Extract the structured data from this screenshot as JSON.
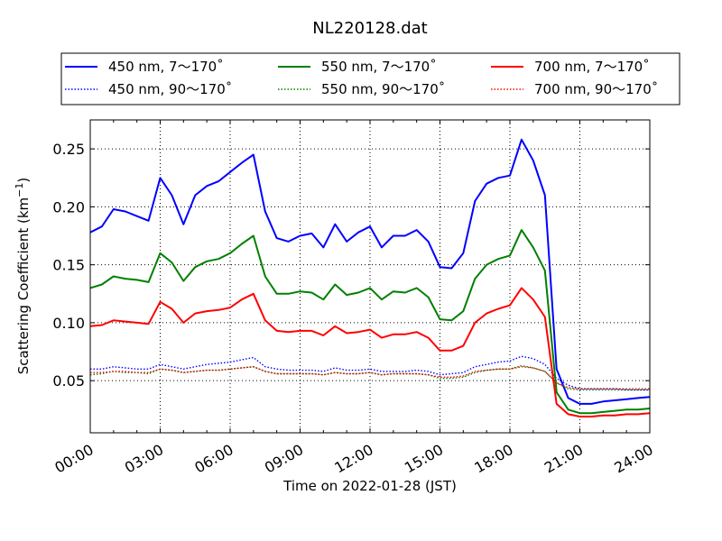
{
  "chart_data": {
    "type": "line",
    "title": "NL220128.dat",
    "xlabel": "Time on 2022-01-28 (JST)",
    "ylabel": "Scattering Coefficient (km",
    "ylabel_sup": "−1",
    "ylabel_end": ")",
    "xlim": [
      0,
      24
    ],
    "ylim": [
      0.005,
      0.275
    ],
    "x_ticks": [
      0,
      3,
      6,
      9,
      12,
      15,
      18,
      21,
      24
    ],
    "x_tick_labels": [
      "00:00",
      "03:00",
      "06:00",
      "09:00",
      "12:00",
      "15:00",
      "18:00",
      "21:00",
      "24:00"
    ],
    "y_ticks": [
      0.05,
      0.1,
      0.15,
      0.2,
      0.25
    ],
    "y_tick_labels": [
      "0.05",
      "0.10",
      "0.15",
      "0.20",
      "0.25"
    ],
    "grid": true,
    "legend": "top-outside",
    "x": [
      0,
      0.5,
      1,
      1.5,
      2,
      2.5,
      3,
      3.5,
      4,
      4.5,
      5,
      5.5,
      6,
      6.5,
      7,
      7.5,
      8,
      8.5,
      9,
      9.5,
      10,
      10.5,
      11,
      11.5,
      12,
      12.5,
      13,
      13.5,
      14,
      14.5,
      15,
      15.5,
      16,
      16.5,
      17,
      17.5,
      18,
      18.5,
      19,
      19.5,
      20,
      20.5,
      21,
      21.5,
      22,
      22.5,
      23,
      23.5,
      24
    ],
    "series": [
      {
        "name": "450 nm, 7～170˚",
        "color": "#0000ff",
        "style": "solid",
        "values": [
          0.178,
          0.183,
          0.198,
          0.196,
          0.192,
          0.188,
          0.225,
          0.21,
          0.185,
          0.21,
          0.218,
          0.222,
          0.23,
          0.238,
          0.245,
          0.196,
          0.173,
          0.17,
          0.175,
          0.177,
          0.165,
          0.185,
          0.17,
          0.178,
          0.183,
          0.165,
          0.175,
          0.175,
          0.18,
          0.17,
          0.148,
          0.147,
          0.16,
          0.205,
          0.22,
          0.225,
          0.227,
          0.258,
          0.24,
          0.21,
          0.06,
          0.035,
          0.03,
          0.03,
          0.032,
          0.033,
          0.034,
          0.035,
          0.036
        ]
      },
      {
        "name": "450 nm, 90～170˚",
        "color": "#0000ff",
        "style": "dotted",
        "values": [
          0.06,
          0.06,
          0.062,
          0.061,
          0.06,
          0.06,
          0.064,
          0.062,
          0.06,
          0.062,
          0.064,
          0.065,
          0.066,
          0.068,
          0.07,
          0.062,
          0.06,
          0.059,
          0.059,
          0.059,
          0.058,
          0.061,
          0.059,
          0.059,
          0.06,
          0.058,
          0.058,
          0.058,
          0.059,
          0.058,
          0.055,
          0.056,
          0.057,
          0.062,
          0.064,
          0.066,
          0.067,
          0.071,
          0.069,
          0.064,
          0.052,
          0.046,
          0.043,
          0.043,
          0.043,
          0.043,
          0.042,
          0.042,
          0.042
        ]
      },
      {
        "name": "550 nm, 7～170˚",
        "color": "#008000",
        "style": "solid",
        "values": [
          0.13,
          0.133,
          0.14,
          0.138,
          0.137,
          0.135,
          0.16,
          0.152,
          0.136,
          0.148,
          0.153,
          0.155,
          0.16,
          0.168,
          0.175,
          0.14,
          0.125,
          0.125,
          0.127,
          0.126,
          0.12,
          0.133,
          0.124,
          0.126,
          0.13,
          0.12,
          0.127,
          0.126,
          0.13,
          0.122,
          0.103,
          0.102,
          0.11,
          0.138,
          0.15,
          0.155,
          0.158,
          0.18,
          0.165,
          0.145,
          0.04,
          0.025,
          0.022,
          0.022,
          0.023,
          0.024,
          0.025,
          0.025,
          0.026
        ]
      },
      {
        "name": "550 nm, 90～170˚",
        "color": "#008000",
        "style": "dotted",
        "values": [
          0.055,
          0.056,
          0.058,
          0.057,
          0.057,
          0.056,
          0.06,
          0.059,
          0.057,
          0.058,
          0.059,
          0.059,
          0.06,
          0.061,
          0.062,
          0.058,
          0.056,
          0.056,
          0.056,
          0.056,
          0.055,
          0.057,
          0.056,
          0.056,
          0.057,
          0.055,
          0.056,
          0.056,
          0.056,
          0.055,
          0.052,
          0.052,
          0.053,
          0.057,
          0.059,
          0.06,
          0.06,
          0.063,
          0.061,
          0.058,
          0.048,
          0.043,
          0.042,
          0.042,
          0.042,
          0.042,
          0.042,
          0.042,
          0.042
        ]
      },
      {
        "name": "700 nm, 7～170˚",
        "color": "#ff0000",
        "style": "solid",
        "values": [
          0.097,
          0.098,
          0.102,
          0.101,
          0.1,
          0.099,
          0.118,
          0.112,
          0.1,
          0.108,
          0.11,
          0.111,
          0.113,
          0.12,
          0.125,
          0.102,
          0.093,
          0.092,
          0.093,
          0.093,
          0.089,
          0.097,
          0.091,
          0.092,
          0.094,
          0.087,
          0.09,
          0.09,
          0.092,
          0.087,
          0.076,
          0.076,
          0.08,
          0.1,
          0.108,
          0.112,
          0.115,
          0.13,
          0.12,
          0.105,
          0.03,
          0.021,
          0.019,
          0.019,
          0.02,
          0.02,
          0.021,
          0.021,
          0.022
        ]
      },
      {
        "name": "700 nm, 90～170˚",
        "color": "#ff0000",
        "style": "dotted",
        "values": [
          0.057,
          0.057,
          0.058,
          0.058,
          0.057,
          0.057,
          0.06,
          0.059,
          0.057,
          0.058,
          0.059,
          0.059,
          0.06,
          0.061,
          0.062,
          0.058,
          0.056,
          0.056,
          0.056,
          0.056,
          0.055,
          0.057,
          0.056,
          0.056,
          0.057,
          0.055,
          0.056,
          0.056,
          0.056,
          0.055,
          0.053,
          0.053,
          0.054,
          0.058,
          0.059,
          0.06,
          0.06,
          0.062,
          0.061,
          0.058,
          0.048,
          0.044,
          0.043,
          0.043,
          0.043,
          0.043,
          0.043,
          0.043,
          0.043
        ]
      }
    ]
  }
}
